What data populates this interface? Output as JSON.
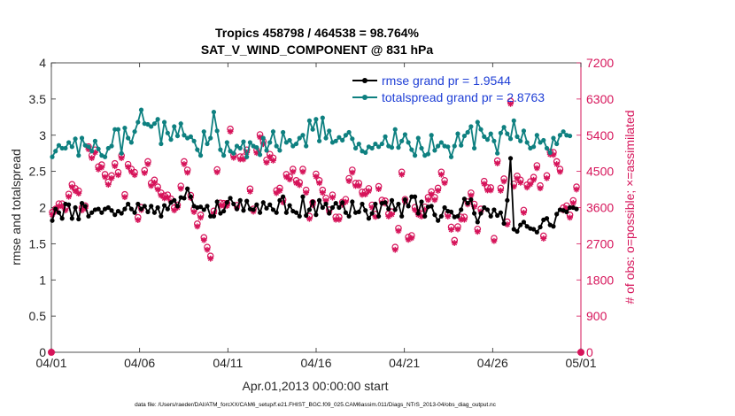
{
  "chart_data": {
    "type": "line",
    "title_line1": "Tropics 458798 / 464538 = 98.764%",
    "title_line2": "SAT_V_WIND_COMPONENT @ 831 hPa",
    "xlabel": "Apr.01,2013 00:00:00 start",
    "ylabel_left": "rmse and totalspread",
    "ylabel_right": "# of obs: o=possible; ×=assimilated",
    "footer": "data file: /Users/raeder/DAI/ATM_forcXX/CAM6_setup/f.e21.FHIST_BGC.f09_025.CAM6assim.011/Diags_NTrS_2013-04/obs_diag_output.nc",
    "x_ticks": [
      "04/01",
      "04/06",
      "04/11",
      "04/16",
      "04/21",
      "04/26",
      "05/01"
    ],
    "x_tick_days": [
      0,
      5,
      10,
      15,
      20,
      25,
      30
    ],
    "xlim": [
      0,
      30
    ],
    "ylim_left": [
      0,
      4
    ],
    "y_ticks_left": [
      "0",
      "0.5",
      "1",
      "1.5",
      "2",
      "2.5",
      "3",
      "3.5",
      "4"
    ],
    "ylim_right": [
      0,
      7200
    ],
    "y_ticks_right": [
      "0",
      "900",
      "1800",
      "2700",
      "3600",
      "4500",
      "5400",
      "6300",
      "7200"
    ],
    "colors": {
      "rmse": "#000000",
      "spread": "#0e8080",
      "obs": "#d6145a",
      "legend_text": "#1f3fd6",
      "axis": "#262626"
    },
    "series": [
      {
        "name": "rmse grand pr = 1.9544",
        "values": [
          1.82,
          1.98,
          1.93,
          1.85,
          2.05,
          2.04,
          1.85,
          2.0,
          1.84,
          2.06,
          2.02,
          1.88,
          1.93,
          1.97,
          1.98,
          1.93,
          1.98,
          2.0,
          1.96,
          1.9,
          1.95,
          1.92,
          1.98,
          2.05,
          1.98,
          1.93,
          2.05,
          1.98,
          2.02,
          1.94,
          2.02,
          1.93,
          2.0,
          1.88,
          2.03,
          1.98,
          2.07,
          2.1,
          2.02,
          2.14,
          2.13,
          2.26,
          2.15,
          2.02,
          2.0,
          2.01,
          1.97,
          2.02,
          1.88,
          1.88,
          2.08,
          1.92,
          1.95,
          2.07,
          2.13,
          2.05,
          1.98,
          2.1,
          1.96,
          2.09,
          1.98,
          1.97,
          2.04,
          1.93,
          2.07,
          1.99,
          2.04,
          1.97,
          1.93,
          2.1,
          2.15,
          1.93,
          2.03,
          1.95,
          1.93,
          1.88,
          2.15,
          1.89,
          1.97,
          2.08,
          1.9,
          2.1,
          2.0,
          2.05,
          1.92,
          2.0,
          2.06,
          2.0,
          2.07,
          1.93,
          1.88,
          2.08,
          1.93,
          1.94,
          2.05,
          1.96,
          1.85,
          1.92,
          2.05,
          1.88,
          2.06,
          2.07,
          1.98,
          2.1,
          1.97,
          2.05,
          1.88,
          2.11,
          2.02,
          2.15,
          2.15,
          1.92,
          2.08,
          1.88,
          2.01,
          2.02,
          1.9,
          1.82,
          1.88,
          2.0,
          1.95,
          1.94,
          1.87,
          1.88,
          1.97,
          2.12,
          2.06,
          2.11,
          1.92,
          1.8,
          1.92,
          2.0,
          1.97,
          1.88,
          1.97,
          1.89,
          1.93,
          1.78,
          2.1,
          2.68,
          1.7,
          1.67,
          1.76,
          1.8,
          1.74,
          1.71,
          1.7,
          1.66,
          1.73,
          1.83,
          1.85,
          1.76,
          1.74,
          1.91,
          1.97,
          1.96,
          1.94,
          2.0,
          2.0,
          1.98
        ]
      },
      {
        "name": "totalspread grand pr = 2.8763",
        "values": [
          2.7,
          2.78,
          2.86,
          2.82,
          2.82,
          2.9,
          2.84,
          2.95,
          2.72,
          2.96,
          2.86,
          2.84,
          2.78,
          2.92,
          2.81,
          2.72,
          2.7,
          2.82,
          2.85,
          3.08,
          3.08,
          2.75,
          3.1,
          2.96,
          2.9,
          3.05,
          3.18,
          3.35,
          3.16,
          3.15,
          3.12,
          3.16,
          3.22,
          2.88,
          3.18,
          3.03,
          2.94,
          3.12,
          2.99,
          3.16,
          3.0,
          2.96,
          2.98,
          2.92,
          2.8,
          2.72,
          3.05,
          2.88,
          2.96,
          3.32,
          3.06,
          2.8,
          2.72,
          2.9,
          2.78,
          2.75,
          2.85,
          2.82,
          2.91,
          2.7,
          2.9,
          2.85,
          2.83,
          2.73,
          2.96,
          2.79,
          2.9,
          3.05,
          2.85,
          2.79,
          3.04,
          2.9,
          2.93,
          2.85,
          2.88,
          2.96,
          3.0,
          2.85,
          3.2,
          3.08,
          3.22,
          2.92,
          3.24,
          2.96,
          3.06,
          2.9,
          2.92,
          2.97,
          2.93,
          3.0,
          3.04,
          2.95,
          2.82,
          2.88,
          2.78,
          2.76,
          2.84,
          2.82,
          2.88,
          2.84,
          2.88,
          2.98,
          2.85,
          2.83,
          3.08,
          2.83,
          2.92,
          3.01,
          2.9,
          2.8,
          2.72,
          2.96,
          2.82,
          2.72,
          2.74,
          3.0,
          2.79,
          2.85,
          2.9,
          2.85,
          2.84,
          2.7,
          2.85,
          3.02,
          2.86,
          2.99,
          3.04,
          3.12,
          2.82,
          3.18,
          3.08,
          2.98,
          2.94,
          3.02,
          2.92,
          2.75,
          3.03,
          3.11,
          3.02,
          2.95,
          3.2,
          2.98,
          2.92,
          3.06,
          2.9,
          2.82,
          2.84,
          3.0,
          2.9,
          2.93,
          2.82,
          2.76,
          2.96,
          2.88,
          3.0,
          3.05,
          3.0,
          2.99
        ]
      }
    ],
    "obs_assimilated": [
      3420,
      3500,
      3630,
      3630,
      3530,
      3870,
      4110,
      4010,
      3950,
      3530,
      3580,
      5050,
      4830,
      4970,
      4550,
      4600,
      4360,
      4170,
      4330,
      4630,
      4410,
      4830,
      3860,
      4610,
      4490,
      4410,
      3290,
      3540,
      4460,
      4680,
      4140,
      4220,
      4050,
      3900,
      3830,
      3850,
      3750,
      3530,
      3600,
      4070,
      4680,
      4470,
      3840,
      3490,
      3130,
      3350,
      2790,
      2550,
      2330,
      3450,
      4480,
      3650,
      3640,
      3640,
      5490,
      4840,
      3590,
      4800,
      4800,
      4970,
      4000,
      3500,
      4960,
      5350,
      5180,
      4720,
      4860,
      4770,
      3960,
      4020,
      3730,
      4360,
      4300,
      4490,
      4210,
      4160,
      4490,
      3970,
      3320,
      3660,
      4370,
      4210,
      3970,
      3770,
      3480,
      3850,
      3300,
      3300,
      3670,
      3740,
      4260,
      4470,
      4140,
      4140,
      3920,
      3930,
      4010,
      3600,
      3370,
      4060,
      3720,
      3700,
      3380,
      3430,
      2550,
      3020,
      4420,
      3740,
      2800,
      2840,
      3540,
      3420,
      3380,
      3550,
      3790,
      3930,
      3790,
      4020,
      4420,
      4210,
      3380,
      3050,
      2720,
      3060,
      3300,
      3300,
      3680,
      3900,
      3620,
      3000,
      3500,
      4190,
      4030,
      4030,
      2770,
      4700,
      4020,
      4250,
      3180,
      6180,
      4120,
      4320,
      4220,
      3470,
      4100,
      4180,
      4290,
      4580,
      4080,
      2830,
      4330,
      4920,
      4910,
      4680,
      4490,
      3530,
      3580,
      3350,
      3710,
      4050
    ],
    "obs_possible": [
      3420,
      3500,
      3630,
      3630,
      3530,
      3870,
      4110,
      4010,
      3950,
      3530,
      3580,
      5050,
      4830,
      4970,
      4550,
      4600,
      4360,
      4170,
      4330,
      4630,
      4410,
      4830,
      3860,
      4610,
      4490,
      4410,
      3290,
      3540,
      4460,
      4680,
      4140,
      4220,
      4050,
      3900,
      3830,
      3850,
      3750,
      3530,
      3600,
      4070,
      4680,
      4470,
      3840,
      3490,
      3130,
      3350,
      2790,
      2550,
      2330,
      3450,
      4480,
      3650,
      3640,
      3640,
      5490,
      4840,
      3590,
      4800,
      4800,
      4970,
      4000,
      3500,
      4960,
      5350,
      5180,
      4720,
      4860,
      4770,
      3960,
      4020,
      3730,
      4360,
      4300,
      4490,
      4210,
      4160,
      4490,
      3970,
      3320,
      3660,
      4370,
      4210,
      3970,
      3770,
      3480,
      3850,
      3300,
      3300,
      3670,
      3740,
      4260,
      4470,
      4140,
      4140,
      3920,
      3930,
      4010,
      3600,
      3370,
      4060,
      3720,
      3700,
      3380,
      3430,
      2550,
      3020,
      4420,
      3740,
      2800,
      2840,
      3540,
      3420,
      3380,
      3550,
      3790,
      3930,
      3790,
      4020,
      4420,
      4210,
      3380,
      3050,
      2720,
      3060,
      3300,
      3300,
      3680,
      3900,
      3620,
      3000,
      3500,
      4190,
      4030,
      4030,
      2770,
      4700,
      4020,
      4250,
      3180,
      6180,
      4120,
      4320,
      4220,
      3470,
      4100,
      4180,
      4290,
      4580,
      4080,
      2830,
      4330,
      4920,
      4910,
      4680,
      4490,
      3530,
      3580,
      3350,
      3710,
      4050
    ],
    "legend": {
      "rmse_label": "rmse grand pr = 1.9544",
      "spread_label": "totalspread grand pr = 2.8763"
    }
  }
}
